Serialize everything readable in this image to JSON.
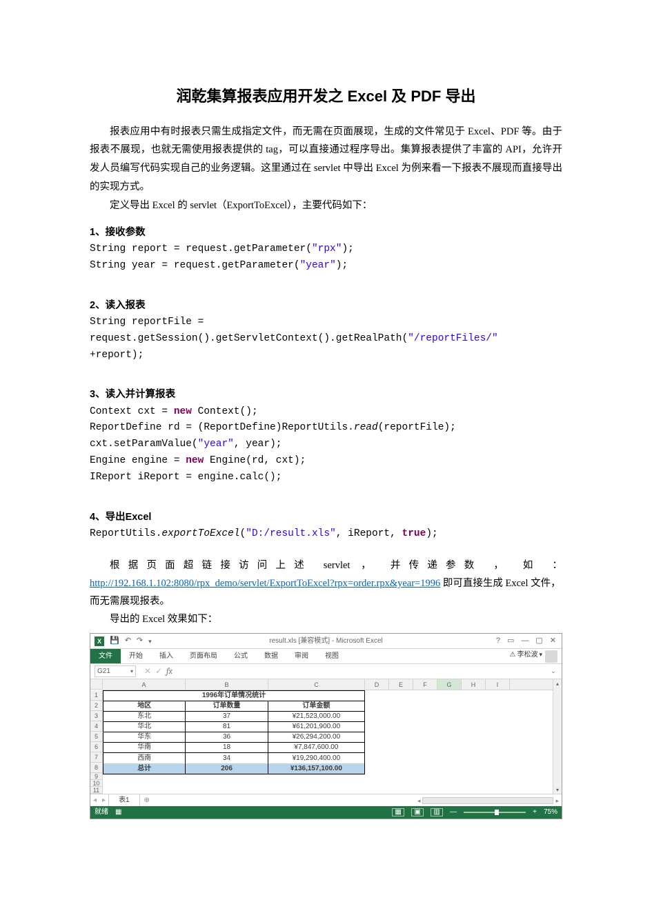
{
  "doc": {
    "title": "润乾集算报表应用开发之 Excel 及 PDF 导出",
    "p1": "报表应用中有时报表只需生成指定文件，而无需在页面展现，生成的文件常见于 Excel、PDF 等。由于报表不展现，也就无需使用报表提供的 tag，可以直接通过程序导出。集算报表提供了丰富的 API，允许开发人员编写代码实现自己的业务逻辑。这里通过在 servlet 中导出 Excel 为例来看一下报表不展现而直接导出的实现方式。",
    "p2": "定义导出 Excel 的 servlet（ExportToExcel），主要代码如下：",
    "s1": "1、接收参数",
    "s2": "2、读入报表",
    "s3": "3、读入并计算报表",
    "s4": "4、导出Excel",
    "p3a": "根据页面超链接访问上述 servlet ， 并传递参数 ， 如 ：",
    "link": "http://192.168.1.102:8080/rpx_demo/servlet/ExportToExcel?rpx=order.rpx&year=1996",
    "p3b": " 即可直接生成 Excel 文件，而无需展现报表。",
    "p4": "导出的 Excel 效果如下：",
    "code1_l1_a": "String report = request.getParameter(",
    "code1_l1_s": "\"rpx\"",
    "code1_l1_b": ");",
    "code1_l2_a": "String year = request.getParameter(",
    "code1_l2_s": "\"year\"",
    "code1_l2_b": ");",
    "code2_l1": "String reportFile =",
    "code2_l2_a": "request.getSession().getServletContext().getRealPath(",
    "code2_l2_s": "\"/reportFiles/\"",
    "code2_l3": "+report);",
    "code3_l1_a": "Context cxt = ",
    "code3_kw_new": "new",
    "code3_l1_b": " Context();",
    "code3_l2_a": "ReportDefine rd = (ReportDefine)ReportUtils.",
    "code3_l2_it": "read",
    "code3_l2_b": "(reportFile);",
    "code3_l3_a": "cxt.setParamValue(",
    "code3_l3_s1": "\"year\"",
    "code3_l3_m": ", year);",
    "code3_l4_a": "Engine engine = ",
    "code3_l4_b": " Engine(rd, cxt);",
    "code3_l5": "IReport iReport = engine.calc();",
    "code4_a": "ReportUtils.",
    "code4_it": "exportToExcel",
    "code4_b": "(",
    "code4_s": "\"D:/result.xls\"",
    "code4_c": ", iReport, ",
    "code4_kw": "true",
    "code4_d": ");"
  },
  "excel": {
    "window_title": "result.xls [兼容模式] - Microsoft Excel",
    "user": "李松波",
    "name_box": "G21",
    "tabs": [
      "文件",
      "开始",
      "插入",
      "页面布局",
      "公式",
      "数据",
      "审阅",
      "视图"
    ],
    "active_tab": 0,
    "col_widths": {
      "A": 120,
      "B": 120,
      "C": 140,
      "D": 35,
      "E": 35,
      "F": 35,
      "G": 35,
      "H": 35,
      "I": 35
    },
    "col_letters": [
      "A",
      "B",
      "C",
      "D",
      "E",
      "F",
      "G",
      "H",
      "I"
    ],
    "sel_col": "G",
    "table": {
      "title": "1996年订单情况统计",
      "headers": [
        "地区",
        "订单数量",
        "订单金额"
      ],
      "rows": [
        [
          "东北",
          "37",
          "¥21,523,000.00"
        ],
        [
          "华北",
          "81",
          "¥61,201,900.00"
        ],
        [
          "华东",
          "36",
          "¥26,294,200.00"
        ],
        [
          "华南",
          "18",
          "¥7,847,600.00"
        ],
        [
          "西南",
          "34",
          "¥19,290,400.00"
        ]
      ],
      "sum": [
        "总计",
        "206",
        "¥136,157,100.00"
      ]
    },
    "sheet_name": "表1",
    "status_left": "就绪",
    "zoom": "75%",
    "colors": {
      "ribbon_green": "#217346",
      "sum_bg": "#b7d4ea",
      "link": "#0563c1"
    }
  }
}
